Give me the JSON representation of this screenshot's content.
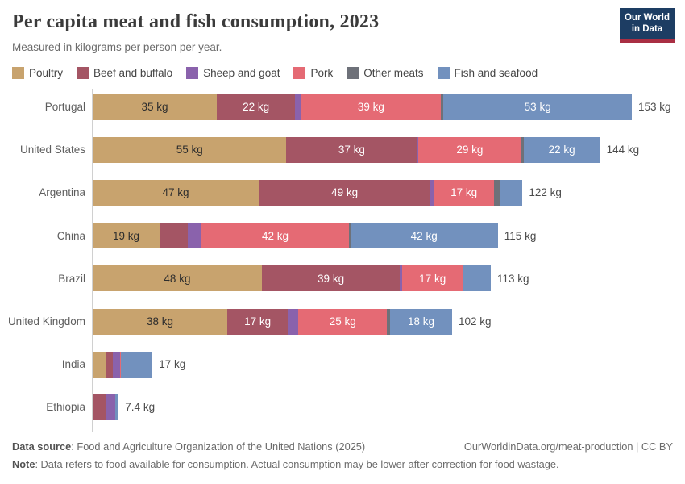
{
  "header": {
    "title": "Per capita meat and fish consumption, 2023",
    "subtitle": "Measured in kilograms per person per year.",
    "logo_line1": "Our World",
    "logo_line2": "in Data",
    "logo_bg_color": "#1d3d63",
    "logo_stripe_color": "#a92e43"
  },
  "legend": {
    "items": [
      {
        "label": "Poultry",
        "color": "#C8A36E",
        "text_color": "#2d2d2d"
      },
      {
        "label": "Beef and buffalo",
        "color": "#A45564",
        "text_color": "#ffffff"
      },
      {
        "label": "Sheep and goat",
        "color": "#8A62AC",
        "text_color": "#ffffff"
      },
      {
        "label": "Pork",
        "color": "#E56A74",
        "text_color": "#ffffff"
      },
      {
        "label": "Other meats",
        "color": "#6E7179",
        "text_color": "#ffffff"
      },
      {
        "label": "Fish and seafood",
        "color": "#7291BE",
        "text_color": "#ffffff"
      }
    ]
  },
  "chart_data": {
    "type": "bar",
    "orientation": "horizontal",
    "stacked": true,
    "unit": "kg",
    "title": "Per capita meat and fish consumption, 2023",
    "xlabel": "",
    "ylabel": "",
    "xlim": [
      0,
      153
    ],
    "series_names": [
      "Poultry",
      "Beef and buffalo",
      "Sheep and goat",
      "Pork",
      "Other meats",
      "Fish and seafood"
    ],
    "rows": [
      {
        "country": "Portugal",
        "total": 153,
        "total_label": "153 kg",
        "values": [
          35.2,
          22.3,
          1.8,
          39.4,
          0.9,
          53.4
        ],
        "value_labels": [
          "35 kg",
          "22 kg",
          "",
          "39 kg",
          "",
          "53 kg"
        ]
      },
      {
        "country": "United States",
        "total": 144,
        "total_label": "144 kg",
        "values": [
          55.0,
          37.0,
          0.5,
          29.0,
          0.8,
          21.7
        ],
        "value_labels": [
          "55 kg",
          "37 kg",
          "",
          "29 kg",
          "",
          "22 kg"
        ]
      },
      {
        "country": "Argentina",
        "total": 122,
        "total_label": "122 kg",
        "values": [
          47.1,
          48.8,
          0.9,
          17.1,
          1.7,
          6.4
        ],
        "value_labels": [
          "47 kg",
          "49 kg",
          "",
          "17 kg",
          "",
          ""
        ]
      },
      {
        "country": "China",
        "total": 115,
        "total_label": "115 kg",
        "values": [
          19.0,
          8.0,
          3.8,
          42.0,
          0.3,
          41.9
        ],
        "value_labels": [
          "19 kg",
          "",
          "",
          "42 kg",
          "",
          "42 kg"
        ]
      },
      {
        "country": "Brazil",
        "total": 113,
        "total_label": "113 kg",
        "values": [
          48.0,
          39.2,
          0.6,
          17.3,
          0.2,
          7.7
        ],
        "value_labels": [
          "48 kg",
          "39 kg",
          "",
          "17 kg",
          "",
          ""
        ]
      },
      {
        "country": "United Kingdom",
        "total": 102,
        "total_label": "102 kg",
        "values": [
          38.2,
          17.2,
          3.0,
          25.1,
          0.9,
          17.6
        ],
        "value_labels": [
          "38 kg",
          "17 kg",
          "",
          "25 kg",
          "",
          "18 kg"
        ]
      },
      {
        "country": "India",
        "total": 17,
        "total_label": "17 kg",
        "values": [
          3.8,
          2.0,
          1.9,
          0.2,
          0.1,
          9.0
        ],
        "value_labels": [
          "",
          "",
          "",
          "",
          "",
          ""
        ]
      },
      {
        "country": "Ethiopia",
        "total": 7.4,
        "total_label": "7.4 kg",
        "values": [
          0.2,
          3.7,
          2.4,
          0.1,
          0.0,
          1.0
        ],
        "value_labels": [
          "",
          "",
          "",
          "",
          "",
          ""
        ]
      }
    ]
  },
  "footer": {
    "source_label": "Data source",
    "source_text": ": Food and Agriculture Organization of the United Nations (2025)",
    "url_text": "OurWorldinData.org/meat-production | CC BY",
    "note_label": "Note",
    "note_text": ": Data refers to food available for consumption. Actual consumption may be lower after correction for food wastage."
  }
}
